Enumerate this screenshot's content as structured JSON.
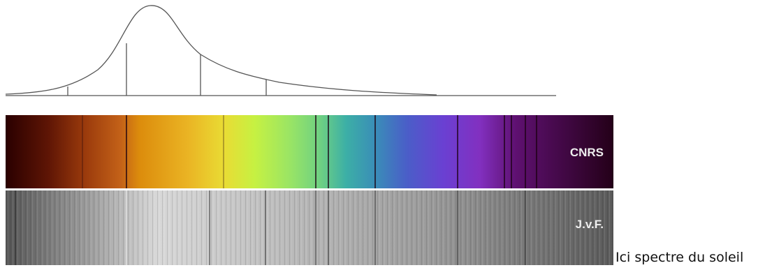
{
  "image": {
    "spectrum_label": "CNRS",
    "photo_label": "J.v.F."
  },
  "caption": "Ici spectre du soleil"
}
